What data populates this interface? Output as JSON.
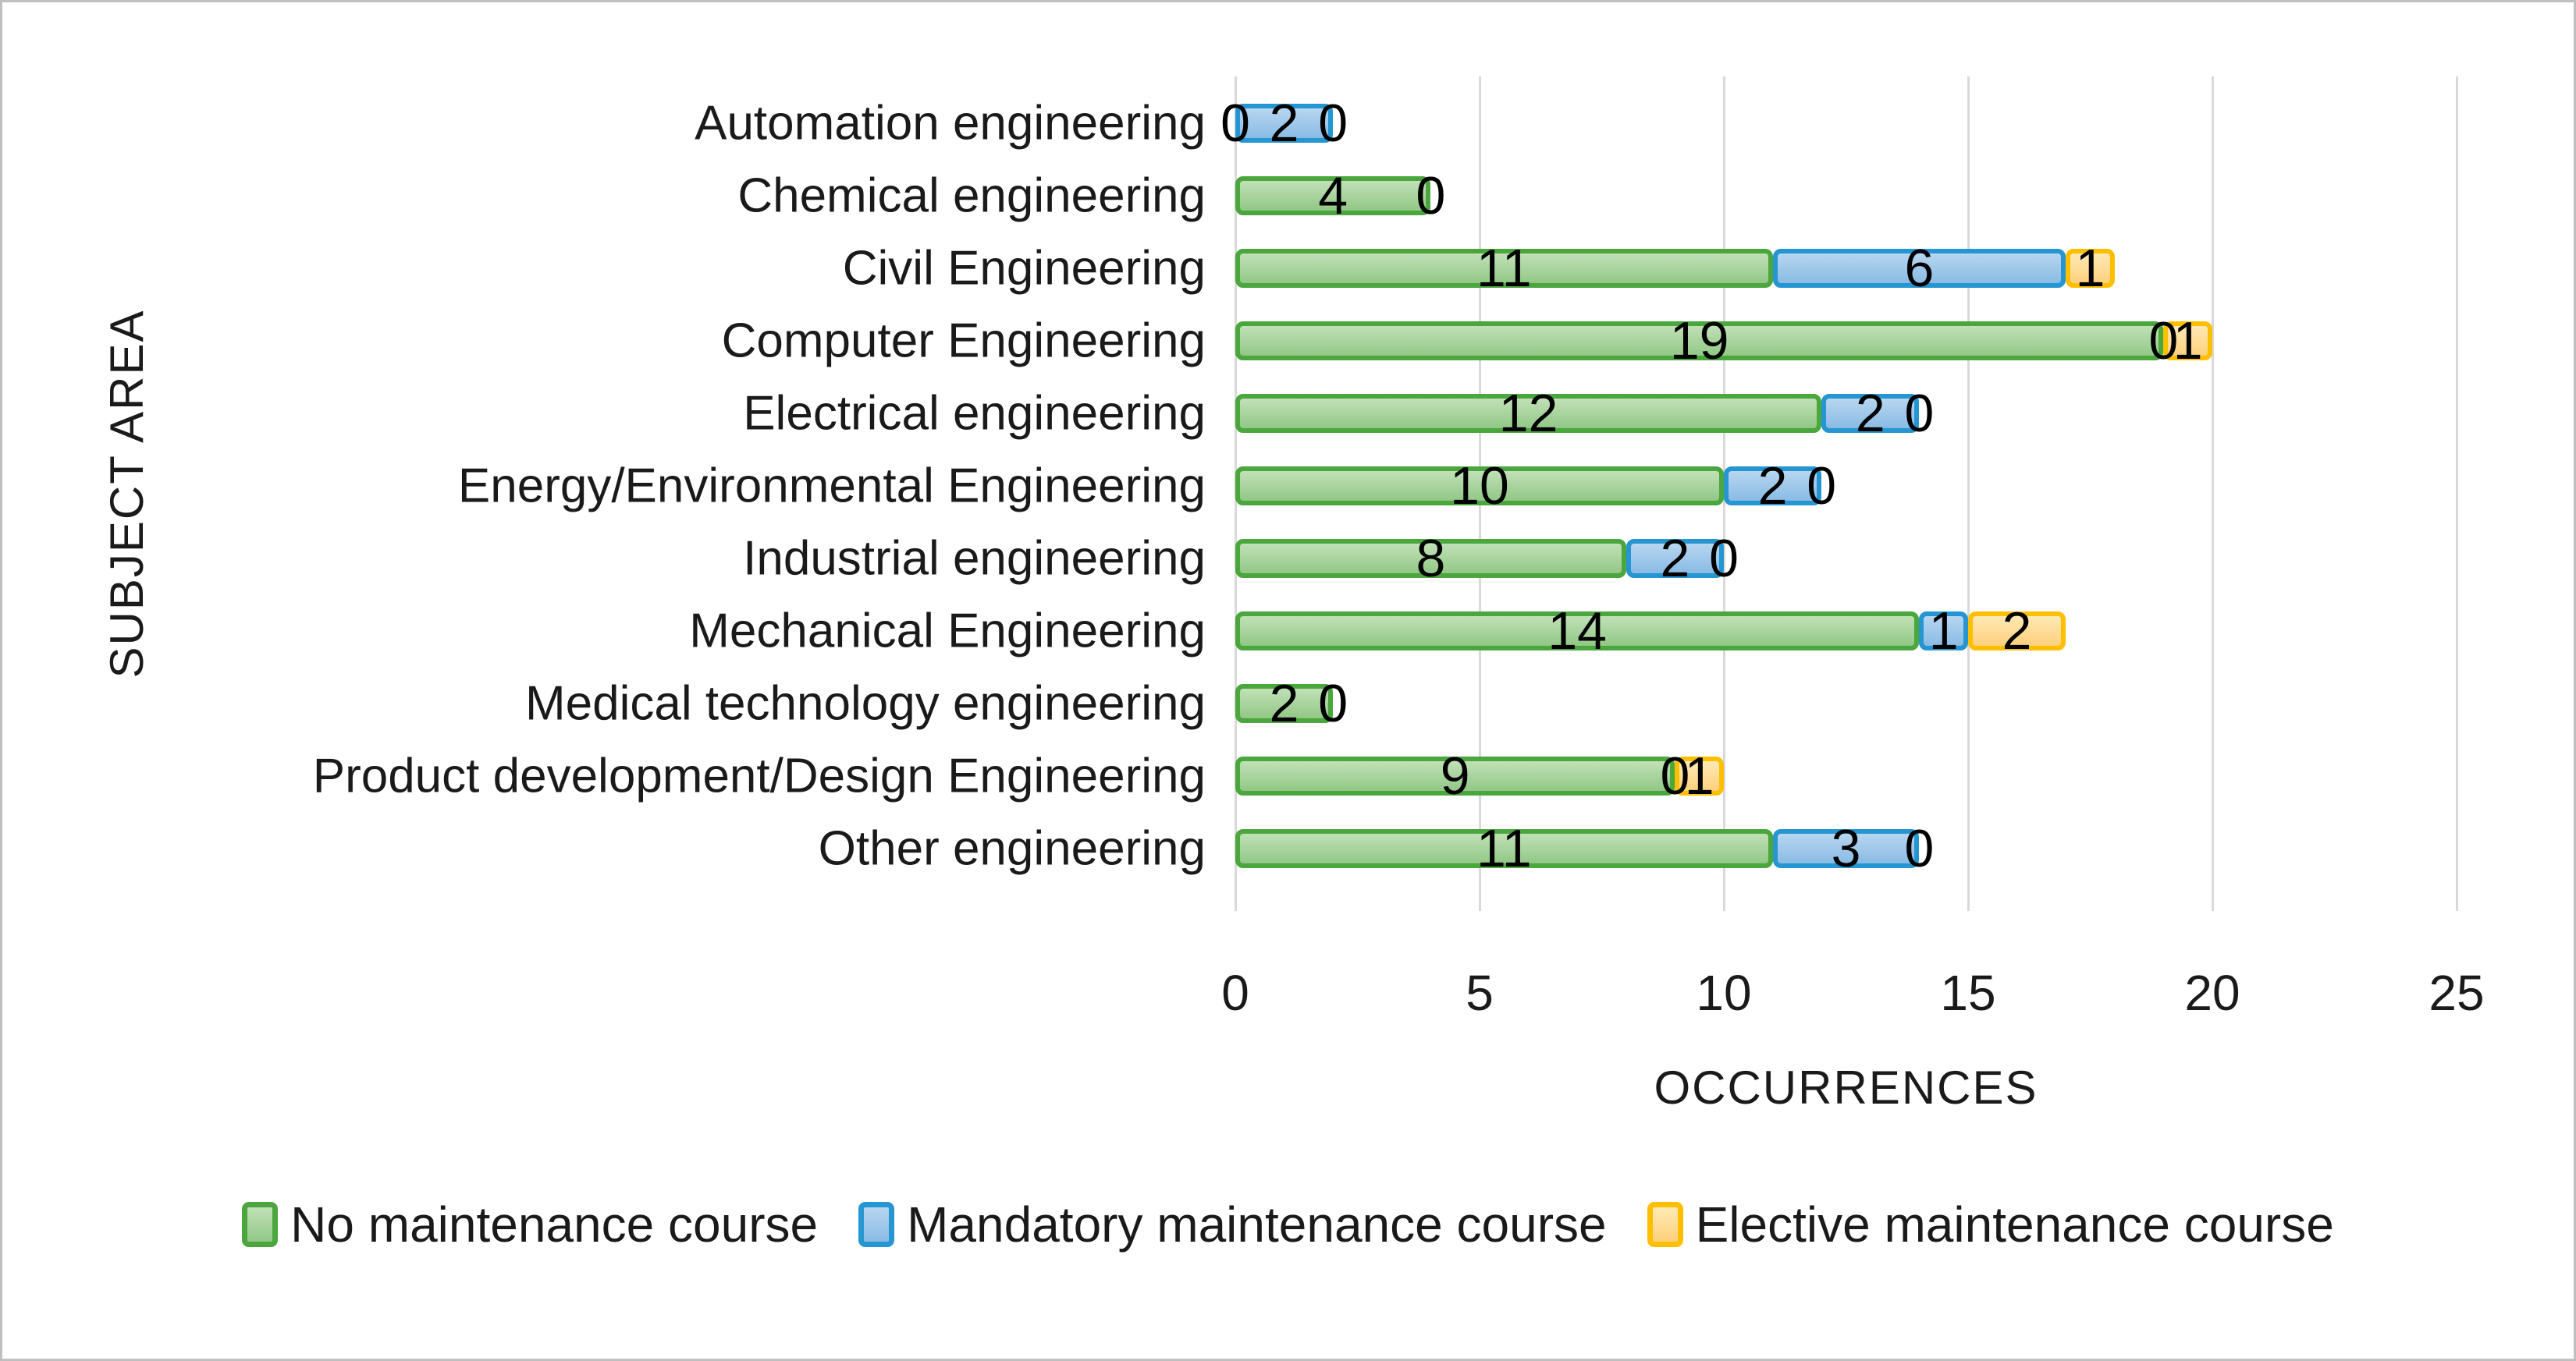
{
  "chart_data": {
    "type": "bar",
    "orientation": "horizontal-stacked",
    "title": "",
    "xlabel": "OCCURRENCES",
    "ylabel": "SUBJECT AREA",
    "xlim": [
      0,
      25
    ],
    "xticks": [
      0,
      5,
      10,
      15,
      20,
      25
    ],
    "grid": "vertical",
    "legend_position": "bottom",
    "categories": [
      "Automation engineering",
      "Chemical engineering",
      "Civil Engineering",
      "Computer Engineering",
      "Electrical engineering",
      "Energy/Environmental Engineering",
      "Industrial engineering",
      "Mechanical Engineering",
      "Medical technology engineering",
      "Product development/Design Engineering",
      "Other engineering"
    ],
    "series": [
      {
        "name": "No maintenance course",
        "values": [
          0,
          4,
          11,
          19,
          12,
          10,
          8,
          14,
          2,
          9,
          11
        ],
        "border_color": "#4aa63d",
        "fill_light": "#c1e1b7",
        "fill_dark": "#92c786"
      },
      {
        "name": "Mandatory maintenance course",
        "values": [
          2,
          0,
          6,
          0,
          2,
          2,
          2,
          1,
          0,
          0,
          3
        ],
        "border_color": "#2596d1",
        "fill_light": "#b7d6f0",
        "fill_dark": "#8abbe4"
      },
      {
        "name": "Elective maintenance course",
        "values": [
          0,
          0,
          1,
          1,
          0,
          0,
          0,
          2,
          0,
          1,
          0
        ],
        "border_color": "#febf00",
        "fill_light": "#ffe9b5",
        "fill_dark": "#fdd07c"
      }
    ],
    "colors": {
      "gridline": "#d9d9d9",
      "text": "#1a1a1a",
      "figure_border": "#bfbfbf",
      "background": "#ffffff"
    }
  }
}
